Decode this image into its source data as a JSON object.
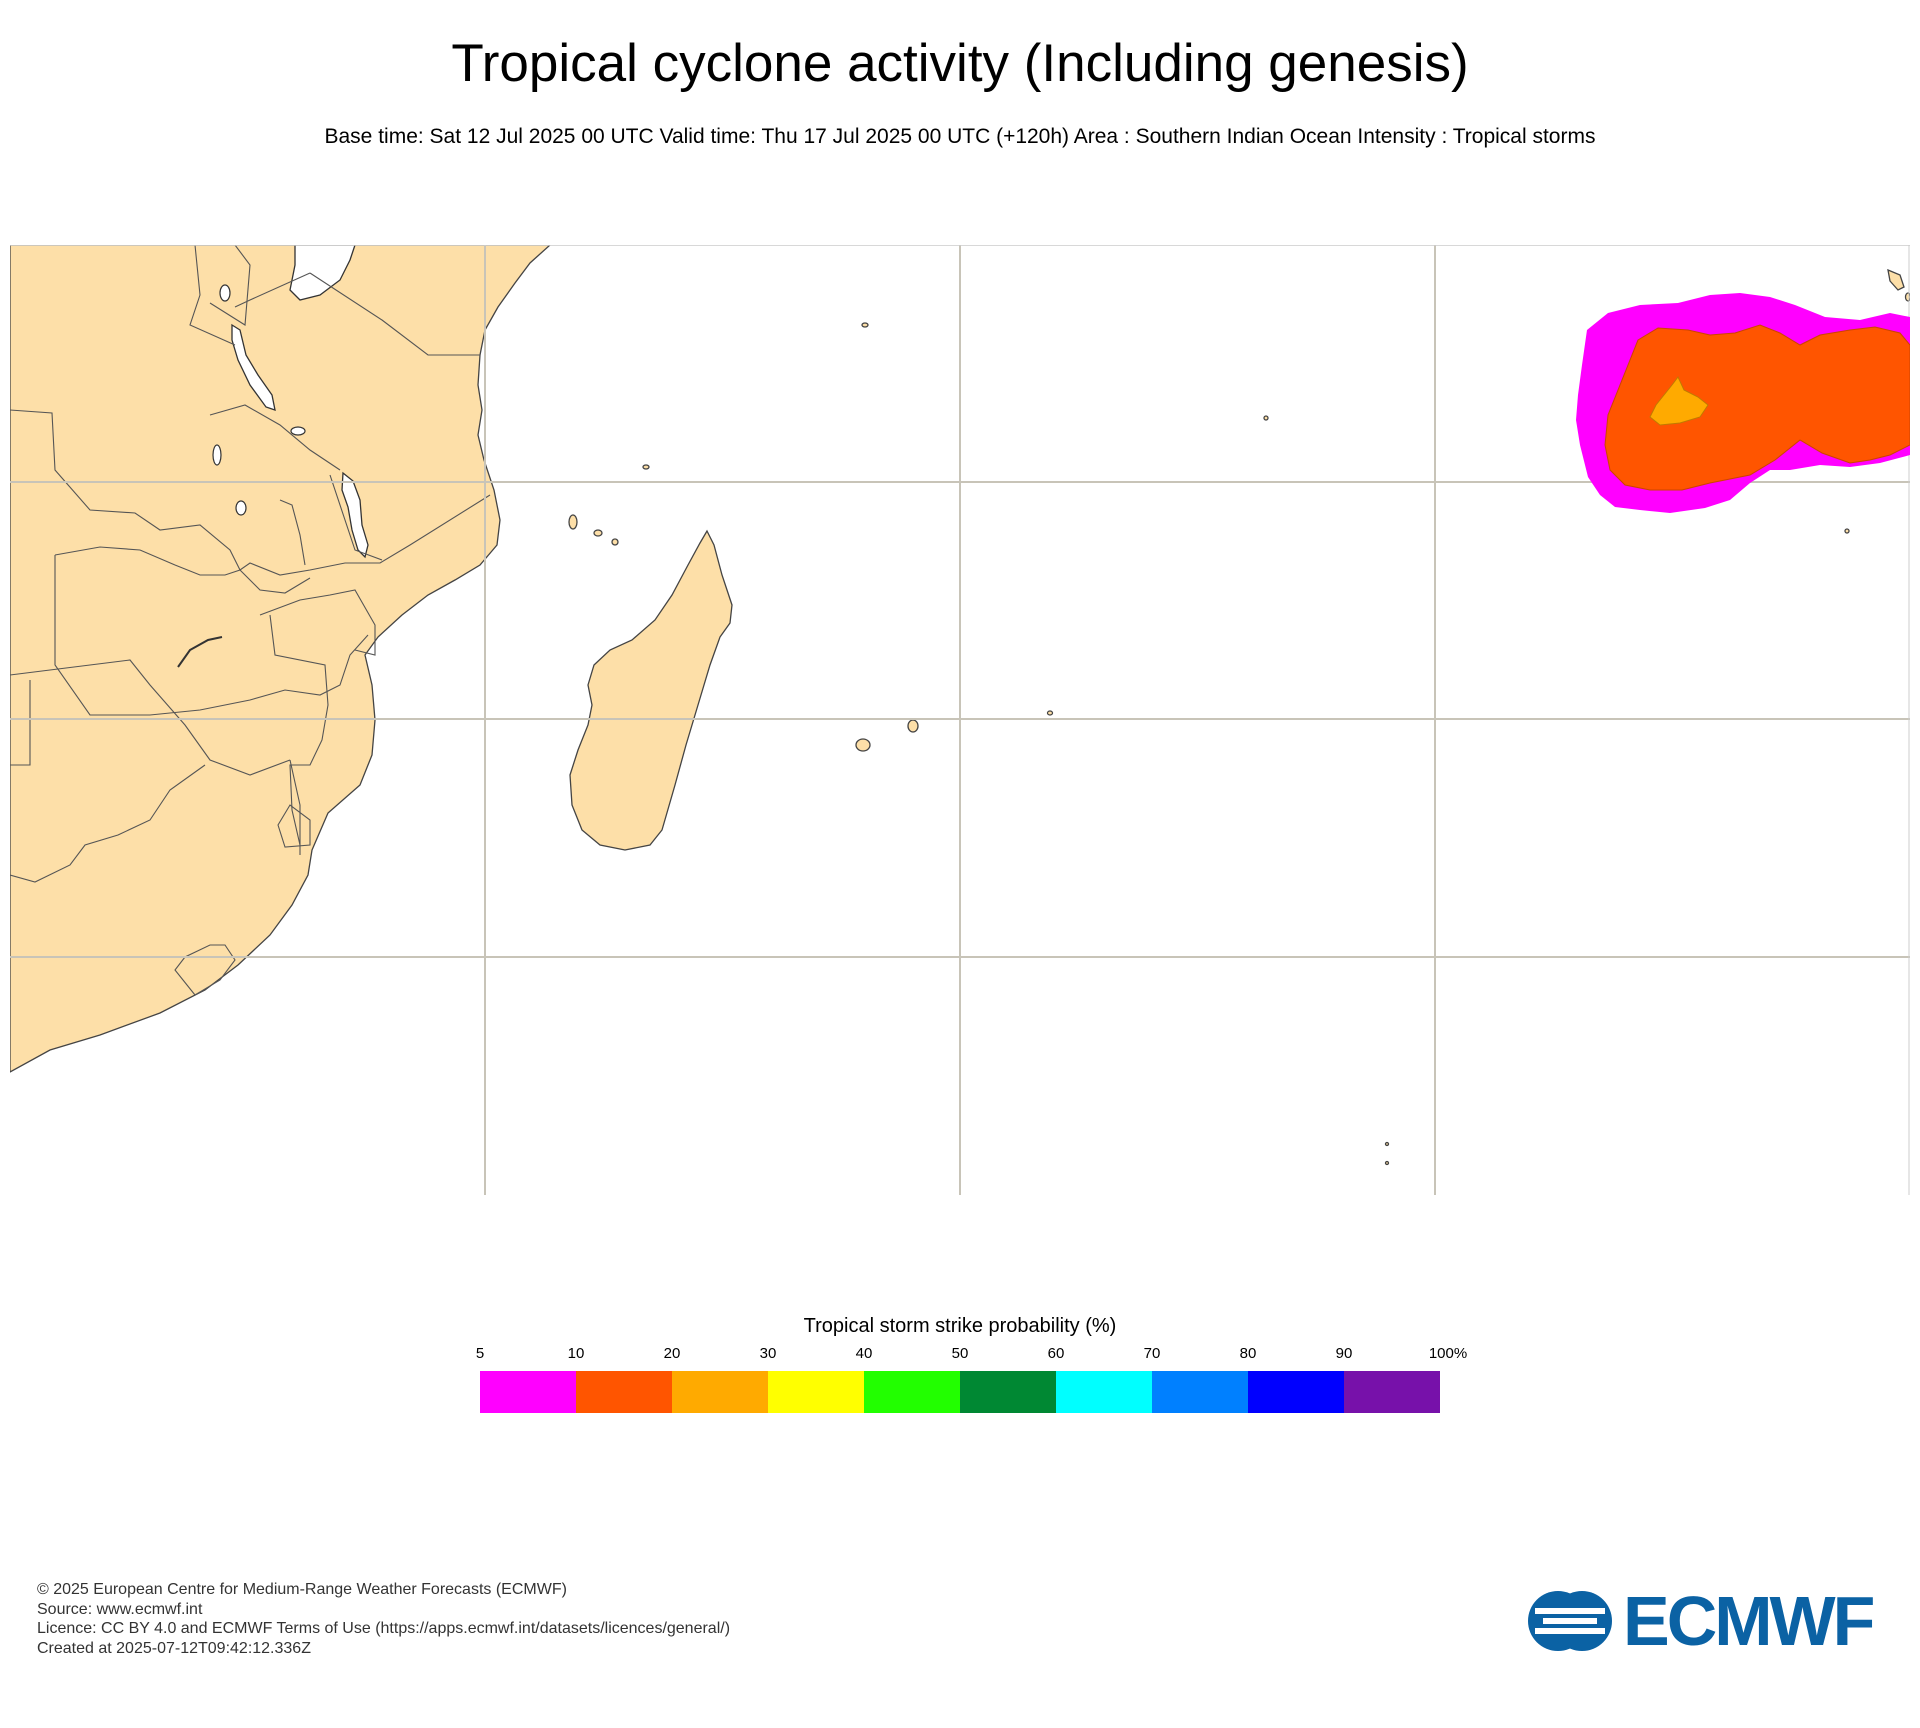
{
  "header": {
    "title": "Tropical cyclone activity (Including genesis)",
    "subtitle": "Base time: Sat 12 Jul 2025 00 UTC Valid time: Thu 17 Jul 2025 00 UTC (+120h) Area : Southern Indian Ocean Intensity : Tropical storms"
  },
  "map": {
    "land_color": "#fddfa8",
    "grid_color": "#c8c4b8",
    "ocean_color": "#ffffff",
    "probability_area": {
      "outer_band": "5-10",
      "middle_band": "10-20",
      "inner_band": "20-30"
    }
  },
  "legend": {
    "title": "Tropical storm strike probability (%)",
    "ticks": [
      "5",
      "10",
      "20",
      "30",
      "40",
      "50",
      "60",
      "70",
      "80",
      "90",
      "100%"
    ],
    "colors": [
      "#ff00ff",
      "#ff5500",
      "#ffaa00",
      "#ffff00",
      "#22ff00",
      "#008833",
      "#00ffff",
      "#0080ff",
      "#0000ff",
      "#7711aa"
    ]
  },
  "footer": {
    "line1": "© 2025 European Centre for Medium-Range Weather Forecasts (ECMWF)",
    "line2": "Source: www.ecmwf.int",
    "line3": "Licence: CC BY 4.0 and ECMWF Terms of Use (https://apps.ecmwf.int/datasets/licences/general/)",
    "line4": "Created at 2025-07-12T09:42:12.336Z"
  },
  "logo": {
    "text": "ECMWF",
    "color": "#0b62a4"
  }
}
